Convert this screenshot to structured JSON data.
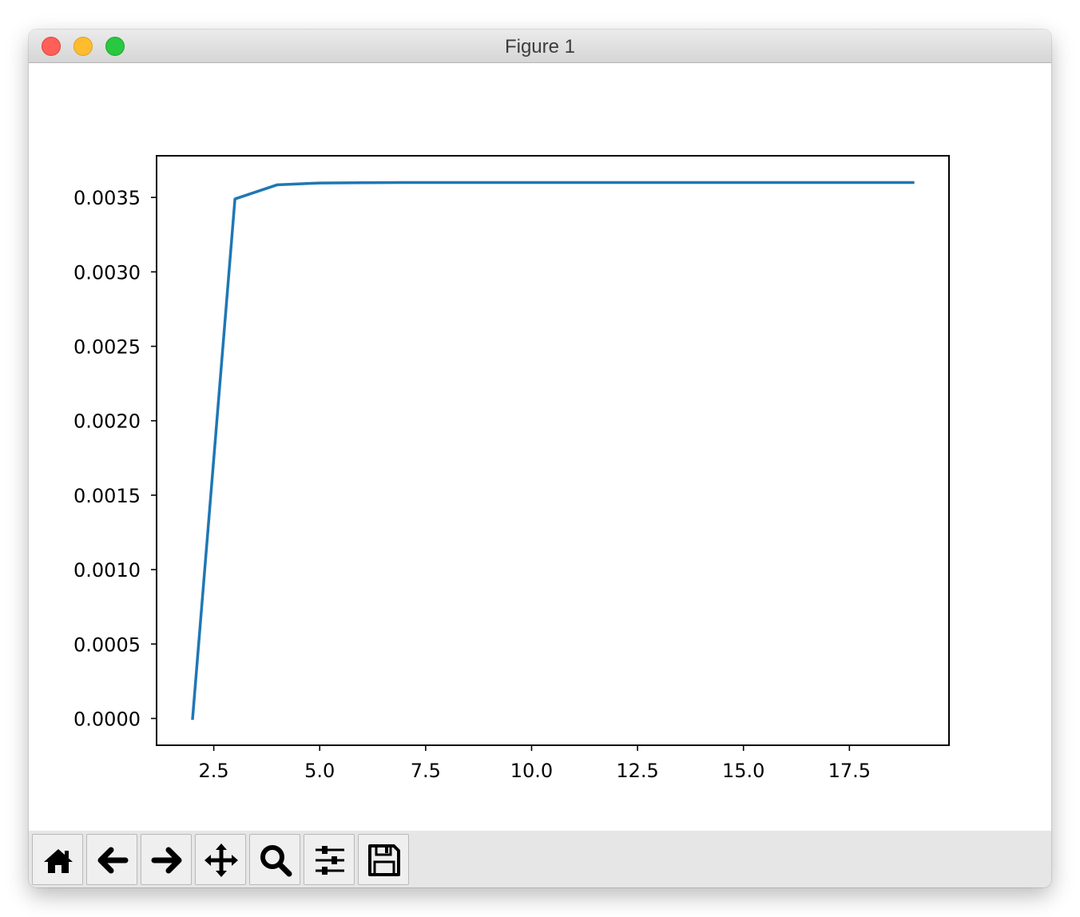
{
  "window": {
    "title": "Figure 1",
    "traffic_lights": [
      {
        "name": "close",
        "color": "#fe5f57"
      },
      {
        "name": "minimize",
        "color": "#febc2e"
      },
      {
        "name": "zoom",
        "color": "#28c840"
      }
    ]
  },
  "toolbar": {
    "buttons": [
      {
        "name": "home",
        "icon": "home-icon"
      },
      {
        "name": "back",
        "icon": "arrow-left-icon"
      },
      {
        "name": "forward",
        "icon": "arrow-right-icon"
      },
      {
        "name": "pan",
        "icon": "move-icon"
      },
      {
        "name": "zoom",
        "icon": "magnifier-icon"
      },
      {
        "name": "configure-subplots",
        "icon": "sliders-icon"
      },
      {
        "name": "save",
        "icon": "floppy-disk-icon"
      }
    ]
  },
  "chart_data": {
    "type": "line",
    "title": "",
    "xlabel": "",
    "ylabel": "",
    "xlim": [
      1.15,
      19.85
    ],
    "ylim": [
      -0.00018,
      0.00378
    ],
    "xticks": [
      2.5,
      5.0,
      7.5,
      10.0,
      12.5,
      15.0,
      17.5
    ],
    "xtick_labels": [
      "2.5",
      "5.0",
      "7.5",
      "10.0",
      "12.5",
      "15.0",
      "17.5"
    ],
    "yticks": [
      0.0,
      0.0005,
      0.001,
      0.0015,
      0.002,
      0.0025,
      0.003,
      0.0035
    ],
    "ytick_labels": [
      "0.0000",
      "0.0005",
      "0.0010",
      "0.0015",
      "0.0020",
      "0.0025",
      "0.0030",
      "0.0035"
    ],
    "grid": false,
    "series": [
      {
        "color": "#1f77b4",
        "x": [
          2,
          3,
          4,
          5,
          6,
          7,
          8,
          9,
          10,
          11,
          12,
          13,
          14,
          15,
          16,
          17,
          18,
          19
        ],
        "y": [
          0.0,
          0.00349,
          0.003585,
          0.003597,
          0.003599,
          0.0036,
          0.0036,
          0.0036,
          0.0036,
          0.0036,
          0.0036,
          0.0036,
          0.0036,
          0.0036,
          0.0036,
          0.0036,
          0.0036,
          0.0036
        ]
      }
    ]
  }
}
